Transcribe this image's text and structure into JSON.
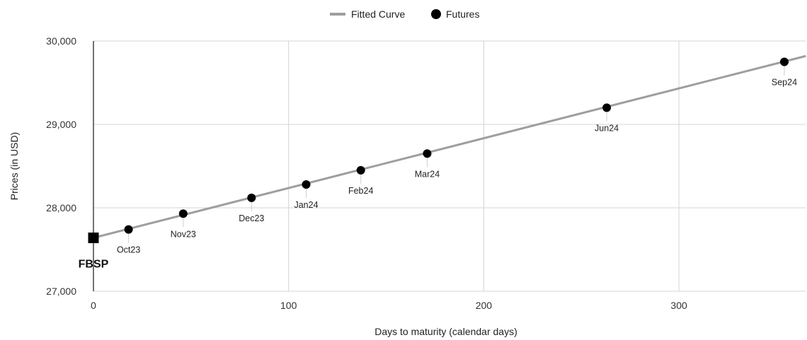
{
  "chart_data": {
    "type": "scatter",
    "xlabel": "Days to maturity (calendar days)",
    "ylabel": "Prices (in USD)",
    "xlim": [
      0,
      365
    ],
    "ylim": [
      27000,
      30000
    ],
    "x_ticks": [
      0,
      100,
      200,
      300
    ],
    "x_tick_labels": [
      "0",
      "100",
      "200",
      "300"
    ],
    "y_ticks": [
      27000,
      28000,
      29000,
      30000
    ],
    "y_tick_labels": [
      "27,000",
      "28,000",
      "29,000",
      "30,000"
    ],
    "grid": true,
    "legend_position": "top-center",
    "legend": [
      "Fitted Curve",
      "Futures"
    ],
    "spot": {
      "label": "FBSP",
      "x": 0,
      "y": 27640
    },
    "series": [
      {
        "name": "Futures",
        "type": "scatter",
        "color": "#000000",
        "points": [
          {
            "label": "Oct23",
            "x": 18,
            "y": 27740
          },
          {
            "label": "Nov23",
            "x": 46,
            "y": 27930
          },
          {
            "label": "Dec23",
            "x": 81,
            "y": 28120
          },
          {
            "label": "Jan24",
            "x": 109,
            "y": 28280
          },
          {
            "label": "Feb24",
            "x": 137,
            "y": 28450
          },
          {
            "label": "Mar24",
            "x": 171,
            "y": 28650
          },
          {
            "label": "Jun24",
            "x": 263,
            "y": 29200
          },
          {
            "label": "Sep24",
            "x": 354,
            "y": 29750
          }
        ]
      },
      {
        "name": "Fitted Curve",
        "type": "line",
        "color": "#9e9e9e",
        "x": [
          0,
          365
        ],
        "y": [
          27640,
          29820
        ]
      }
    ]
  }
}
